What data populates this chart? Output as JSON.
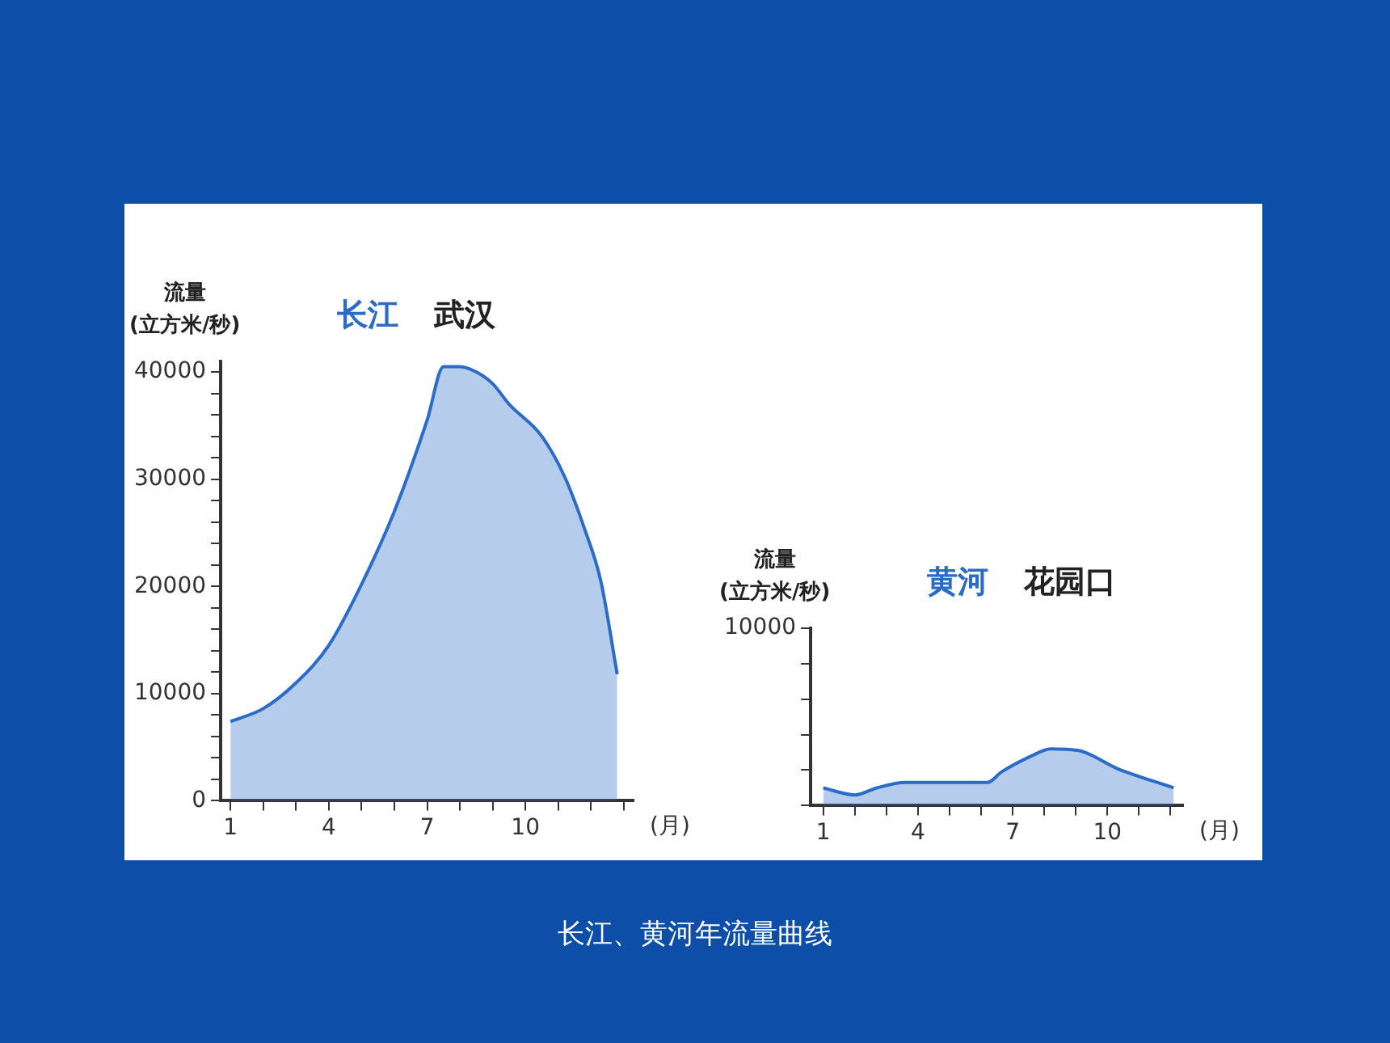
{
  "chart_data": [
    {
      "type": "area",
      "title": "武汉",
      "ylabel": "流量\n(立方米/秒)",
      "xlabel": "(月)",
      "annotations": [
        "长江、黄河年流量曲线"
      ],
      "x": [
        1,
        2,
        3,
        4,
        5,
        6,
        7,
        7.5,
        8,
        8.5,
        9,
        9.5,
        10.5,
        11.2,
        11.8,
        12.3,
        12.8
      ],
      "series": [
        {
          "name": "长江",
          "color": "#2a6cc8",
          "values": [
            7400,
            8600,
            11000,
            14500,
            20200,
            27000,
            35500,
            40500,
            40500,
            40000,
            38900,
            37000,
            34000,
            30200,
            25400,
            20500,
            11800
          ]
        }
      ],
      "xlim": [
        0.7,
        13.3
      ],
      "xticks": [
        1,
        {
          "value": 2,
          "label": null
        },
        {
          "value": 3,
          "label": null
        },
        4,
        {
          "value": 5,
          "label": null
        },
        {
          "value": 6,
          "label": null
        },
        7,
        {
          "value": 8,
          "label": null
        },
        {
          "value": 9,
          "label": null
        },
        10,
        {
          "value": 11,
          "label": null
        },
        {
          "value": 12,
          "label": null
        },
        {
          "value": 13,
          "label": null
        }
      ],
      "ylim": [
        0,
        41000
      ],
      "yticks": [
        0,
        {
          "value": 2000,
          "label": null
        },
        {
          "value": 4000,
          "label": null
        },
        {
          "value": 6000,
          "label": null
        },
        {
          "value": 8000,
          "label": null
        },
        10000,
        {
          "value": 12000,
          "label": null
        },
        {
          "value": 14000,
          "label": null
        },
        {
          "value": 16000,
          "label": null
        },
        {
          "value": 18000,
          "label": null
        },
        20000,
        {
          "value": 22000,
          "label": null
        },
        {
          "value": 24000,
          "label": null
        },
        {
          "value": 26000,
          "label": null
        },
        {
          "value": 28000,
          "label": null
        },
        30000,
        {
          "value": 32000,
          "label": null
        },
        {
          "value": 34000,
          "label": null
        },
        {
          "value": 36000,
          "label": null
        },
        {
          "value": 38000,
          "label": null
        },
        40000
      ],
      "grid": false,
      "legend": false
    },
    {
      "type": "area",
      "title": "花园口",
      "ylabel": "流量\n(立方米/秒)",
      "xlabel": "(月)",
      "x": [
        1,
        2,
        2.7,
        3.6,
        6.2,
        6.65,
        7.6,
        8.2,
        9.1,
        10.3,
        12.1
      ],
      "series": [
        {
          "name": "黄河",
          "color": "#2a6cc8",
          "values": [
            1000,
            600,
            1000,
            1300,
            1300,
            1900,
            2800,
            3200,
            3100,
            2100,
            1000
          ]
        }
      ],
      "xlim": [
        0.6,
        12.4
      ],
      "xticks": [
        1,
        {
          "value": 2,
          "label": null
        },
        {
          "value": 3,
          "label": null
        },
        4,
        {
          "value": 5,
          "label": null
        },
        {
          "value": 6,
          "label": null
        },
        7,
        {
          "value": 8,
          "label": null
        },
        {
          "value": 9,
          "label": null
        },
        10,
        {
          "value": 11,
          "label": null
        },
        {
          "value": 12,
          "label": null
        }
      ],
      "ylim": [
        0,
        10000
      ],
      "yticks": [
        {
          "value": 0,
          "label": null
        },
        {
          "value": 2000,
          "label": null
        },
        {
          "value": 4000,
          "label": null
        },
        {
          "value": 6000,
          "label": null
        },
        {
          "value": 8000,
          "label": null
        },
        10000
      ],
      "grid": false,
      "legend": false
    }
  ]
}
